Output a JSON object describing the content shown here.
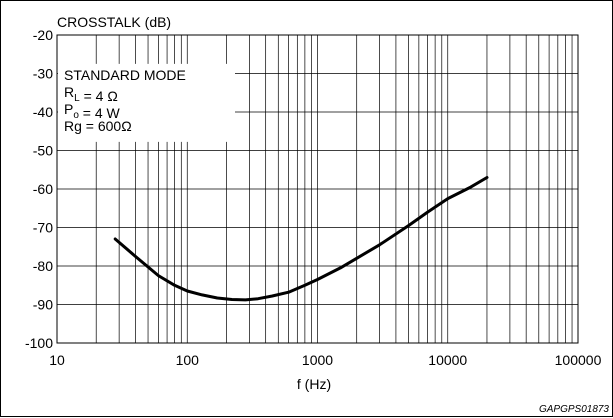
{
  "chart_data": {
    "type": "line",
    "title": "",
    "ylabel": "CROSSTALK (dB)",
    "xlabel": "f (Hz)",
    "x_scale": "log",
    "xlim": [
      10,
      100000
    ],
    "ylim": [
      -100,
      -20
    ],
    "grid": true,
    "x_tick_labels": [
      "10",
      "100",
      "1000",
      "10000",
      "100000"
    ],
    "x_ticks": [
      10,
      100,
      1000,
      10000,
      100000
    ],
    "y_tick_labels": [
      "-20",
      "-30",
      "-40",
      "-50",
      "-60",
      "-70",
      "-80",
      "-90",
      "-100"
    ],
    "y_ticks": [
      -20,
      -30,
      -40,
      -50,
      -60,
      -70,
      -80,
      -90,
      -100
    ],
    "series": [
      {
        "x": [
          28,
          40,
          60,
          80,
          100,
          130,
          170,
          220,
          280,
          350,
          450,
          600,
          800,
          1000,
          1500,
          2000,
          3000,
          5000,
          7000,
          10000,
          15000,
          20000
        ],
        "y": [
          -73,
          -77.5,
          -82.5,
          -85,
          -86.5,
          -87.5,
          -88.3,
          -88.7,
          -88.8,
          -88.5,
          -87.8,
          -86.8,
          -85,
          -83.5,
          -80.5,
          -78,
          -74.5,
          -69.5,
          -66,
          -62.5,
          -59.5,
          -57
        ]
      }
    ],
    "annotation_lines": [
      "STANDARD MODE",
      "R<sub>L</sub> = 4 Ω",
      "P<sub>o</sub> = 4 W",
      "Rg = 600Ω"
    ],
    "legend_location": "top-left"
  },
  "figure_code": "GAPGPS01873"
}
